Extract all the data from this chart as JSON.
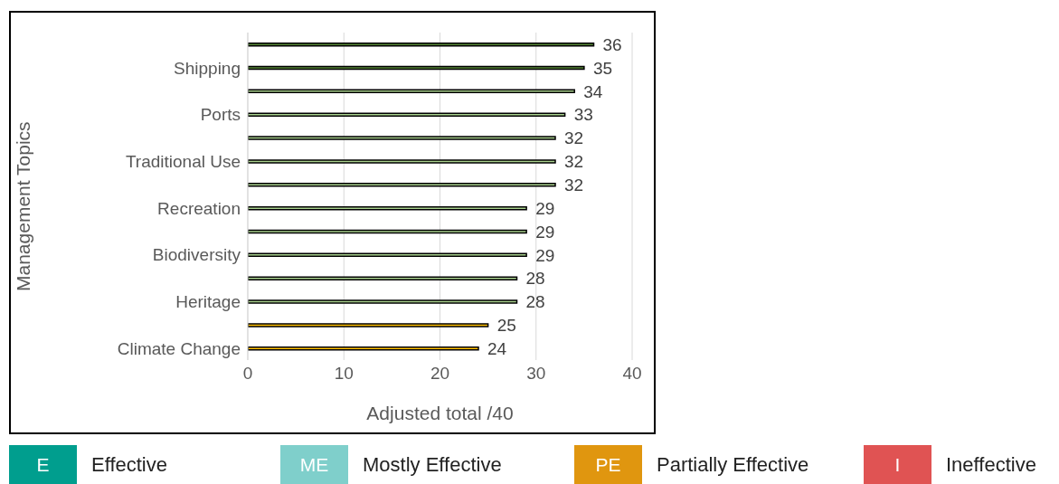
{
  "chart_data": [
    {
      "type": "bar",
      "orientation": "horizontal",
      "xlabel": "Adjusted total /40",
      "ylabel": "Management Topics",
      "categories": [
        null,
        "Shipping",
        null,
        "Ports",
        null,
        "Traditional Use",
        null,
        "Recreation",
        null,
        "Biodiversity",
        null,
        "Heritage",
        null,
        "Climate Change"
      ],
      "values": [
        36,
        35,
        34,
        33,
        32,
        32,
        32,
        29,
        29,
        29,
        28,
        28,
        25,
        24
      ],
      "colors": [
        "#548235",
        "#548235",
        "#a9d18e",
        "#a9d18e",
        "#a9d18e",
        "#a9d18e",
        "#a9d18e",
        "#a9d18e",
        "#a9d18e",
        "#a9d18e",
        "#a9d18e",
        "#a9d18e",
        "#ffc000",
        "#ffc000"
      ],
      "xlim": [
        0,
        40
      ],
      "xticks": [
        0,
        10,
        20,
        30,
        40
      ],
      "grid": "x",
      "data_labels": true,
      "legend": false
    },
    {
      "type": "other",
      "categories": [
        "Effective",
        "Mostly Effective",
        "Partially Effective",
        "Ineffective"
      ],
      "annotations": [
        "E",
        "ME",
        "PE",
        "I"
      ],
      "colors": [
        "#009e8e",
        "#7fcfcb",
        "#e0960f",
        "#e05353"
      ]
    }
  ]
}
